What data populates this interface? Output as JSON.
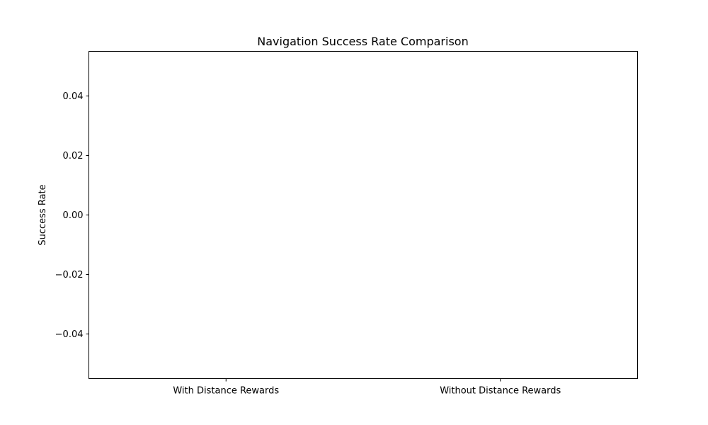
{
  "chart_data": {
    "type": "bar",
    "title": "Navigation Success Rate Comparison",
    "xlabel": "",
    "ylabel": "Success Rate",
    "categories": [
      "With Distance Rewards",
      "Without Distance Rewards"
    ],
    "values": [
      0,
      0
    ],
    "ylim": [
      -0.055,
      0.055
    ],
    "yticks": [
      -0.04,
      -0.02,
      0.0,
      0.02,
      0.04
    ],
    "ytick_labels": [
      "−0.04",
      "−0.02",
      "0.00",
      "0.02",
      "0.04"
    ],
    "grid": false,
    "legend": "none",
    "bar_color": "#1f77b4"
  }
}
